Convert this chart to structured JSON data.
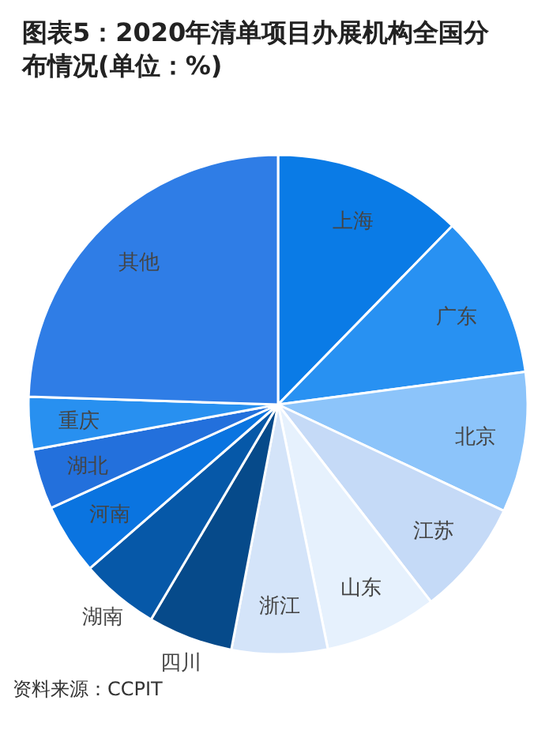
{
  "chart_data": {
    "type": "pie",
    "title": "图表5：2020年清单项目办展机构全国分布情况(单位：%)",
    "categories": [
      "上海",
      "广东",
      "北京",
      "江苏",
      "山东",
      "浙江",
      "四川",
      "湖南",
      "河南",
      "湖北",
      "重庆",
      "其他"
    ],
    "values": [
      12.3,
      10.6,
      9.1,
      7.5,
      7.3,
      6.2,
      5.5,
      5.1,
      4.6,
      3.9,
      3.4,
      24.5
    ],
    "colors": [
      "#0a7be6",
      "#2891f2",
      "#8cc4fa",
      "#c5daf7",
      "#e6f1fd",
      "#d4e4f9",
      "#064a8a",
      "#0658a8",
      "#0a74e0",
      "#2370dc",
      "#2890f0",
      "#2f7de6"
    ],
    "annotations": [
      "资料来源：CCPIT"
    ]
  }
}
